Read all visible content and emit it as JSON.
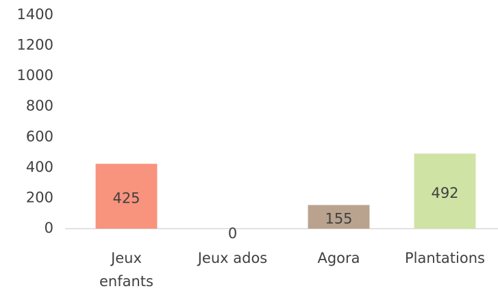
{
  "chart_data": {
    "type": "bar",
    "categories": [
      "Jeux enfants",
      "Jeux ados",
      "Agora",
      "Plantations"
    ],
    "values": [
      425,
      0,
      155,
      492
    ],
    "colors": [
      "#f8937e",
      "#f4c08a",
      "#b9a38f",
      "#cfe3a5"
    ],
    "ylim": [
      0,
      1400
    ],
    "yticks": [
      0,
      200,
      400,
      600,
      800,
      1000,
      1200,
      1400
    ],
    "grid": false
  }
}
